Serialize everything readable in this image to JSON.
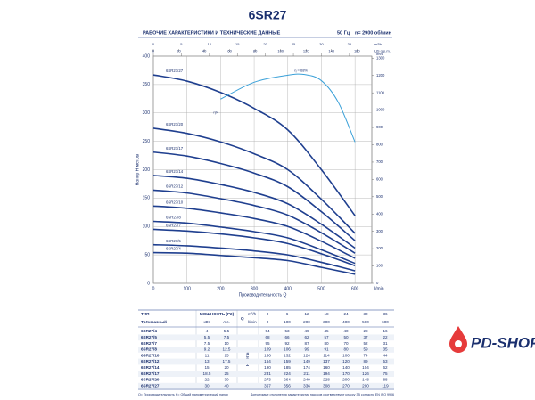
{
  "header": {
    "title": "6SR27",
    "subtitle": "РАБОЧИЕ ХАРАКТЕРИСТИКИ И ТЕХНИЧЕСКИЕ ДАННЫЕ",
    "frequency": "50 Гц",
    "speed": "n= 2900 об/мин"
  },
  "chart_data": {
    "type": "line",
    "y_label": "Напор H метры",
    "x_label": "Производительность Q",
    "x_unit": "l/min",
    "x2_unit": "m³/h",
    "x3_unit": "US g.p.m.",
    "y2_unit": "feet",
    "x": [
      0,
      100,
      200,
      300,
      400,
      500,
      600
    ],
    "xlim": [
      0,
      650
    ],
    "xticks": [
      0,
      100,
      200,
      300,
      400,
      500,
      600
    ],
    "x2lim": [
      0,
      39
    ],
    "x2ticks": [
      0,
      5,
      10,
      15,
      20,
      25,
      30,
      35
    ],
    "x3lim": [
      0,
      171.7
    ],
    "x3ticks": [
      0,
      20,
      40,
      60,
      80,
      100,
      120,
      140,
      160
    ],
    "ylim": [
      0,
      400
    ],
    "yticks": [
      0,
      50,
      100,
      150,
      200,
      250,
      300,
      350,
      400
    ],
    "y2lim": [
      0,
      1312
    ],
    "y2ticks": [
      0,
      100,
      200,
      300,
      400,
      500,
      600,
      700,
      800,
      900,
      1000,
      1100,
      1200,
      1300
    ],
    "grid": true,
    "series": [
      {
        "name": "6SR27/4",
        "color": "#1f3f8f",
        "values": [
          54,
          53,
          49,
          45,
          40,
          28,
          16
        ]
      },
      {
        "name": "6SR27/5",
        "color": "#1f3f8f",
        "values": [
          68,
          66,
          62,
          57,
          50,
          37,
          22
        ]
      },
      {
        "name": "6SR27/7",
        "color": "#1f3f8f",
        "values": [
          95,
          92,
          87,
          80,
          70,
          52,
          31
        ]
      },
      {
        "name": "6SR27/8",
        "color": "#1f3f8f",
        "values": [
          109,
          106,
          99,
          91,
          80,
          59,
          35
        ]
      },
      {
        "name": "6SR27/10",
        "color": "#1f3f8f",
        "values": [
          136,
          132,
          124,
          114,
          100,
          74,
          44
        ]
      },
      {
        "name": "6SR27/12",
        "color": "#1f3f8f",
        "values": [
          164,
          159,
          149,
          137,
          120,
          89,
          53
        ]
      },
      {
        "name": "6SR27/14",
        "color": "#1f3f8f",
        "values": [
          190,
          185,
          174,
          160,
          140,
          104,
          62
        ]
      },
      {
        "name": "6SR27/17",
        "color": "#1f3f8f",
        "values": [
          231,
          224,
          211,
          194,
          170,
          126,
          75
        ]
      },
      {
        "name": "6SR27/20",
        "color": "#1f3f8f",
        "values": [
          273,
          264,
          249,
          228,
          200,
          148,
          88
        ]
      },
      {
        "name": "6SR27/27",
        "color": "#1f3f8f",
        "values": [
          367,
          356,
          336,
          308,
          270,
          200,
          119
        ]
      }
    ],
    "efficiency": {
      "label": "η = 68%",
      "axis_label": "η%",
      "color": "#3aa0d8",
      "x": [
        200,
        300,
        400,
        450,
        500,
        550,
        600
      ],
      "values": [
        60,
        65.5,
        67.8,
        68,
        66,
        59,
        46
      ],
      "lim": [
        0,
        74
      ]
    }
  },
  "table": {
    "type": "ТИП",
    "phase": "Трёхфазный",
    "power": "МОЩНОСТЬ (P2)",
    "kw": "кВт",
    "hp": "л.с.",
    "q": "Q",
    "q_unit1": "m³/h",
    "q_unit2": "l/min",
    "h": "H метры",
    "q_m3h": [
      0,
      6,
      12,
      18,
      24,
      30,
      36
    ],
    "power_values": [
      [
        4,
        5.5
      ],
      [
        5.5,
        7.5
      ],
      [
        7.5,
        10
      ],
      [
        9.2,
        12.5
      ],
      [
        11,
        15
      ],
      [
        13,
        17.5
      ],
      [
        15,
        20
      ],
      [
        18.5,
        25
      ],
      [
        22,
        30
      ],
      [
        30,
        40
      ]
    ]
  },
  "notes": [
    "Q= Производительность  H= Общий манометрический напор",
    "Допустимые отклонения характеристик насосов соответствуют классу 3В согласно EN ISO 9906"
  ],
  "logo": "PD-SHOP"
}
